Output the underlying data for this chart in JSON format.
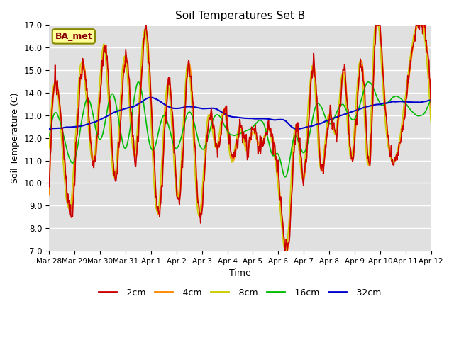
{
  "title": "Soil Temperatures Set B",
  "xlabel": "Time",
  "ylabel": "Soil Temperature (C)",
  "ylim": [
    7.0,
    17.0
  ],
  "yticks": [
    7.0,
    8.0,
    9.0,
    10.0,
    11.0,
    12.0,
    13.0,
    14.0,
    15.0,
    16.0,
    17.0
  ],
  "xtick_labels": [
    "Mar 28",
    "Mar 29",
    "Mar 30",
    "Mar 31",
    "Apr 1",
    "Apr 2",
    "Apr 3",
    "Apr 4",
    "Apr 5",
    "Apr 6",
    "Apr 7",
    "Apr 8",
    "Apr 9",
    "Apr 10",
    "Apr 11",
    "Apr 12"
  ],
  "legend_labels": [
    "-2cm",
    "-4cm",
    "-8cm",
    "-16cm",
    "-32cm"
  ],
  "line_colors": [
    "#cc0000",
    "#ff8800",
    "#cccc00",
    "#00bb00",
    "#0000cc"
  ],
  "bg_color": "#e0e0e0",
  "grid_color": "#ffffff",
  "annotation_text": "BA_met"
}
